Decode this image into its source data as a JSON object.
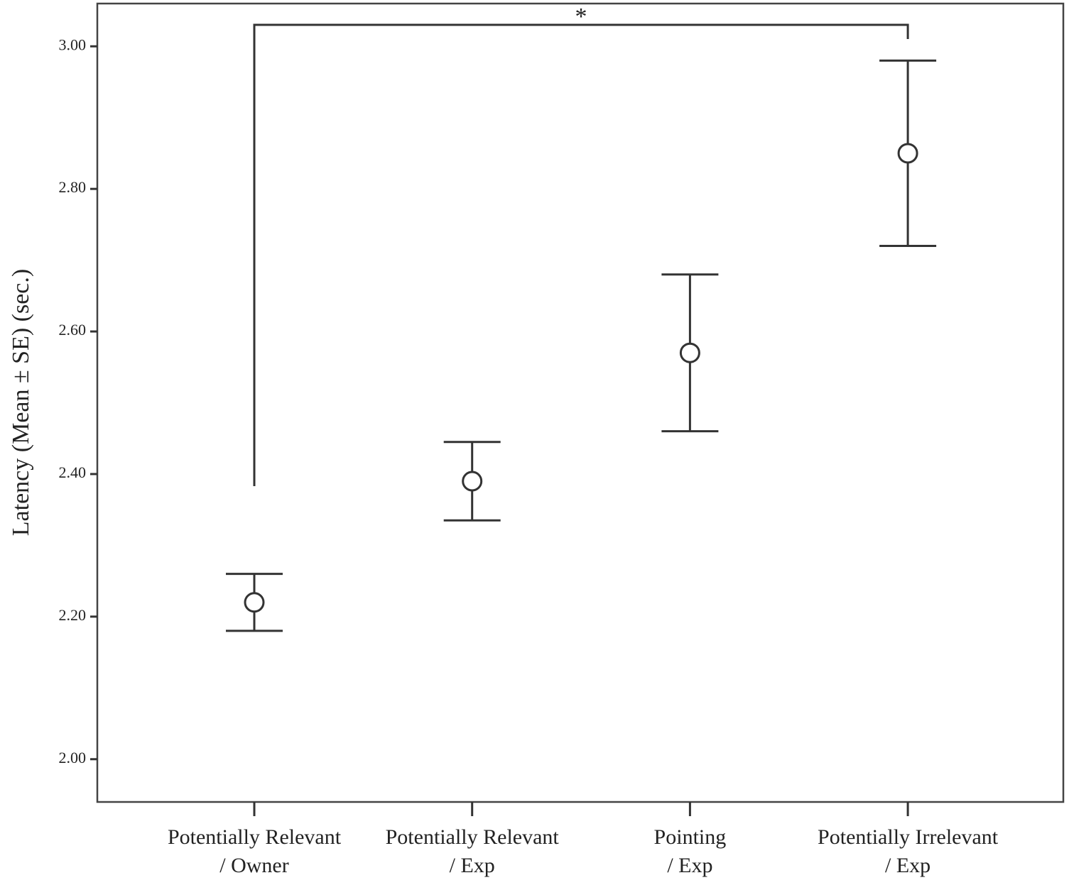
{
  "chart_data": {
    "type": "errorbar",
    "y_label": "Latency (Mean ± SE) (sec.)",
    "categories": [
      [
        "Potentially Relevant",
        "/ Owner"
      ],
      [
        "Potentially Relevant",
        "/ Exp"
      ],
      [
        "Pointing",
        "/ Exp"
      ],
      [
        "Potentially Irrelevant",
        "/ Exp"
      ]
    ],
    "values": [
      2.22,
      2.39,
      2.57,
      2.85
    ],
    "errors": [
      0.04,
      0.055,
      0.11,
      0.13
    ],
    "color": "#333333",
    "ylim": [
      1.94,
      3.06
    ],
    "yticks": [
      {
        "value": 2,
        "label": "2.00"
      },
      {
        "value": 2.2,
        "label": "2.20"
      },
      {
        "value": 2.4,
        "label": "2.40"
      },
      {
        "value": 2.6,
        "label": "2.60"
      },
      {
        "value": 2.8,
        "label": "2.80"
      },
      {
        "value": 3,
        "label": "3.00"
      }
    ],
    "bracket": {
      "label": "*",
      "between": [
        0,
        3
      ]
    }
  }
}
